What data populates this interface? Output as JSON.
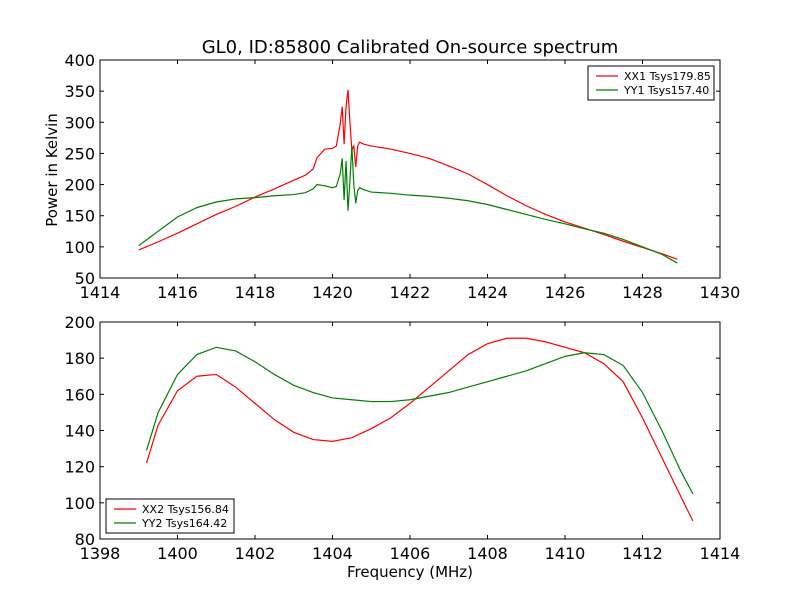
{
  "figure": {
    "title": "GL0, ID:85800 Calibrated On-source spectrum",
    "xlabel": "Frequency (MHz)",
    "ylabel": "Power in Kelvin"
  },
  "chart_data": [
    {
      "type": "line",
      "title": "GL0, ID:85800 Calibrated On-source spectrum",
      "xlabel": "",
      "ylabel": "Power in Kelvin",
      "xlim": [
        1414,
        1430
      ],
      "ylim": [
        50,
        400
      ],
      "xticks": [
        1414,
        1416,
        1418,
        1420,
        1422,
        1424,
        1426,
        1428,
        1430
      ],
      "yticks": [
        50,
        100,
        150,
        200,
        250,
        300,
        350,
        400
      ],
      "legend_position": "top-right",
      "series": [
        {
          "name": "XX1 Tsys179.85",
          "color": "#ff0000",
          "x": [
            1415.0,
            1415.5,
            1416.0,
            1416.5,
            1417.0,
            1417.5,
            1418.0,
            1418.5,
            1419.0,
            1419.3,
            1419.5,
            1419.6,
            1419.8,
            1420.0,
            1420.1,
            1420.2,
            1420.25,
            1420.3,
            1420.35,
            1420.4,
            1420.45,
            1420.5,
            1420.55,
            1420.6,
            1420.65,
            1420.7,
            1420.8,
            1421.0,
            1421.5,
            1422.0,
            1422.5,
            1423.0,
            1423.5,
            1424.0,
            1424.5,
            1425.0,
            1425.5,
            1426.0,
            1426.5,
            1427.0,
            1427.5,
            1428.0,
            1428.5,
            1428.9
          ],
          "values": [
            95,
            108,
            122,
            137,
            152,
            165,
            180,
            193,
            207,
            215,
            225,
            243,
            257,
            258,
            262,
            298,
            325,
            265,
            325,
            352,
            300,
            255,
            262,
            228,
            262,
            268,
            265,
            262,
            257,
            250,
            242,
            230,
            217,
            200,
            182,
            166,
            152,
            140,
            130,
            120,
            109,
            99,
            89,
            80
          ]
        },
        {
          "name": "YY1 Tsys157.40",
          "color": "#008000",
          "x": [
            1415.0,
            1415.5,
            1416.0,
            1416.5,
            1417.0,
            1417.5,
            1418.0,
            1418.5,
            1419.0,
            1419.3,
            1419.5,
            1419.6,
            1419.8,
            1420.0,
            1420.1,
            1420.2,
            1420.25,
            1420.3,
            1420.35,
            1420.4,
            1420.45,
            1420.5,
            1420.55,
            1420.6,
            1420.65,
            1420.7,
            1420.8,
            1421.0,
            1421.5,
            1422.0,
            1422.5,
            1423.0,
            1423.5,
            1424.0,
            1424.5,
            1425.0,
            1425.5,
            1426.0,
            1426.5,
            1427.0,
            1427.5,
            1428.0,
            1428.5,
            1428.9
          ],
          "values": [
            102,
            125,
            148,
            163,
            172,
            177,
            179,
            182,
            184,
            187,
            193,
            200,
            198,
            195,
            197,
            218,
            242,
            175,
            238,
            158,
            205,
            262,
            200,
            170,
            190,
            195,
            192,
            188,
            186,
            183,
            181,
            178,
            174,
            168,
            160,
            152,
            144,
            137,
            129,
            122,
            112,
            100,
            88,
            74
          ]
        }
      ]
    },
    {
      "type": "line",
      "title": "",
      "xlabel": "Frequency (MHz)",
      "ylabel": "",
      "xlim": [
        1398,
        1414
      ],
      "ylim": [
        80,
        200
      ],
      "xticks": [
        1398,
        1400,
        1402,
        1404,
        1406,
        1408,
        1410,
        1412,
        1414
      ],
      "yticks": [
        80,
        100,
        120,
        140,
        160,
        180,
        200
      ],
      "legend_position": "bottom-left",
      "series": [
        {
          "name": "XX2 Tsys156.84",
          "color": "#ff0000",
          "x": [
            1399.2,
            1399.5,
            1400.0,
            1400.5,
            1401.0,
            1401.5,
            1402.0,
            1402.5,
            1403.0,
            1403.5,
            1404.0,
            1404.5,
            1405.0,
            1405.5,
            1406.0,
            1406.5,
            1407.0,
            1407.5,
            1408.0,
            1408.5,
            1409.0,
            1409.5,
            1410.0,
            1410.5,
            1411.0,
            1411.5,
            1412.0,
            1412.5,
            1413.0,
            1413.3
          ],
          "values": [
            122,
            143,
            162,
            170,
            171,
            164,
            155,
            146,
            139,
            135,
            134,
            136,
            141,
            147,
            155,
            164,
            173,
            182,
            188,
            191,
            191,
            189,
            186,
            183,
            177,
            167,
            147,
            125,
            103,
            90
          ]
        },
        {
          "name": "YY2 Tsys164.42",
          "color": "#008000",
          "x": [
            1399.2,
            1399.5,
            1400.0,
            1400.5,
            1401.0,
            1401.5,
            1402.0,
            1402.5,
            1403.0,
            1403.5,
            1404.0,
            1404.5,
            1405.0,
            1405.5,
            1406.0,
            1406.5,
            1407.0,
            1407.5,
            1408.0,
            1408.5,
            1409.0,
            1409.5,
            1410.0,
            1410.5,
            1411.0,
            1411.5,
            1412.0,
            1412.5,
            1413.0,
            1413.3
          ],
          "values": [
            129,
            150,
            171,
            182,
            186,
            184,
            178,
            171,
            165,
            161,
            158,
            157,
            156,
            156,
            157,
            159,
            161,
            164,
            167,
            170,
            173,
            177,
            181,
            183,
            182,
            176,
            161,
            140,
            117,
            105
          ]
        }
      ]
    }
  ]
}
